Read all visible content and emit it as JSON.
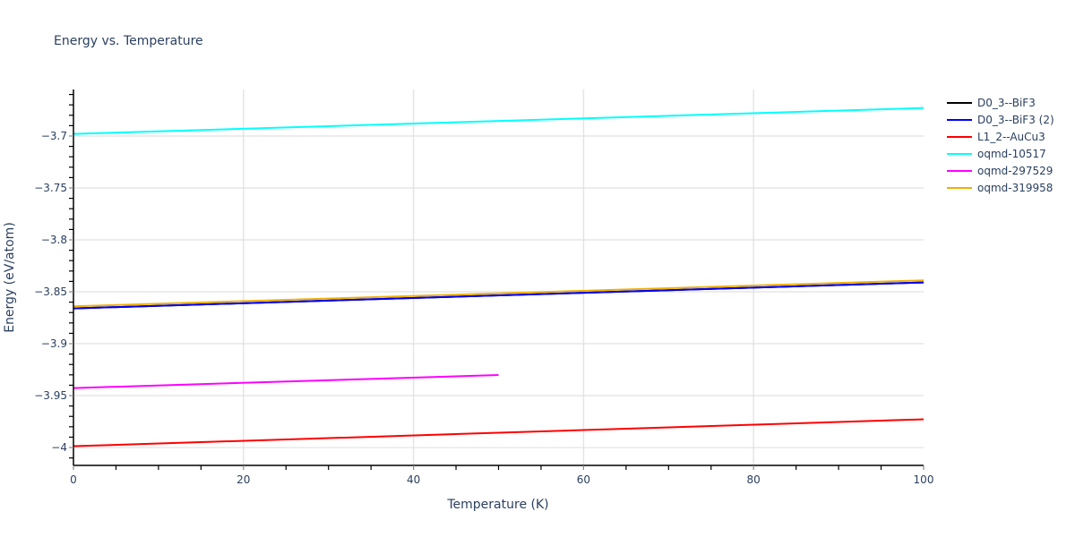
{
  "chart_data": {
    "type": "line",
    "title": "Energy vs. Temperature",
    "xlabel": "Temperature (K)",
    "ylabel": "Energy (eV/atom)",
    "xlim": [
      0,
      100
    ],
    "ylim": [
      -4.0172,
      -3.6552
    ],
    "x_ticks": [
      0,
      20,
      40,
      60,
      80,
      100
    ],
    "x_tick_labels": [
      "0",
      "20",
      "40",
      "60",
      "80",
      "100"
    ],
    "y_ticks": [
      -3.7,
      -3.75,
      -3.8,
      -3.85,
      -3.9,
      -3.95,
      -4.0
    ],
    "y_tick_labels": [
      "−3.7",
      "−3.75",
      "−3.8",
      "−3.85",
      "−3.9",
      "−3.95",
      "−4"
    ],
    "grid": true,
    "legend_position": "right",
    "series": [
      {
        "name": "D0_3--BiF3",
        "color": "#000000",
        "x": [
          0,
          100
        ],
        "y": [
          -3.866,
          -3.841
        ]
      },
      {
        "name": "D0_3--BiF3 (2)",
        "color": "#0000ff",
        "x": [
          0,
          100
        ],
        "y": [
          -3.866,
          -3.841
        ]
      },
      {
        "name": "L1_2--AuCu3",
        "color": "#ff0000",
        "x": [
          0,
          100
        ],
        "y": [
          -3.9987,
          -3.9728
        ]
      },
      {
        "name": "oqmd-10517",
        "color": "#00ffff",
        "x": [
          0,
          100
        ],
        "y": [
          -3.698,
          -3.673
        ]
      },
      {
        "name": "oqmd-297529",
        "color": "#ff00ff",
        "x": [
          0,
          50
        ],
        "y": [
          -3.9427,
          -3.9302
        ]
      },
      {
        "name": "oqmd-319958",
        "color": "#f0b000",
        "x": [
          0,
          100
        ],
        "y": [
          -3.864,
          -3.839
        ]
      }
    ]
  }
}
